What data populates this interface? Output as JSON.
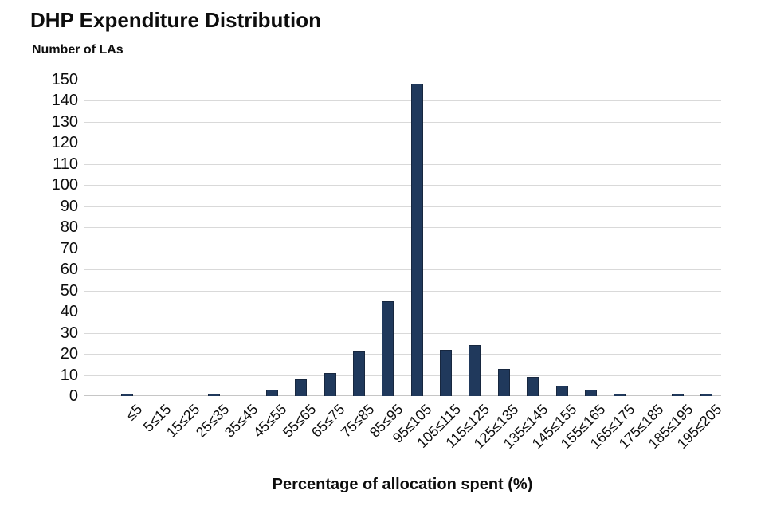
{
  "chart_data": {
    "type": "bar",
    "title": "DHP Expenditure Distribution",
    "ylabel": "Number of LAs",
    "xlabel": "Percentage of allocation spent (%)",
    "categories": [
      "≤5",
      "5≤15",
      "15≤25",
      "25≤35",
      "35≤45",
      "45≤55",
      "55≤65",
      "65≤75",
      "75≤85",
      "85≤95",
      "95≤105",
      "105≤115",
      "115≤125",
      "125≤135",
      "135≤145",
      "145≤155",
      "155≤165",
      "165≤175",
      "175≤185",
      "185≤195",
      "195≤205"
    ],
    "values": [
      1,
      0,
      0,
      1,
      0,
      3,
      8,
      11,
      21,
      45,
      148,
      22,
      24,
      13,
      9,
      5,
      3,
      1,
      0,
      1,
      1
    ],
    "ylim": [
      0,
      150
    ],
    "ytick_step": 10,
    "grid": true,
    "legend": false,
    "bar_color": "#20395C",
    "bar_border_color": "#17273F",
    "gridline_color": "#D9D9D9",
    "baseline_color": "#C6C6C6",
    "background_color": "#FFFFFF",
    "text_color": "#0D0D0D"
  }
}
